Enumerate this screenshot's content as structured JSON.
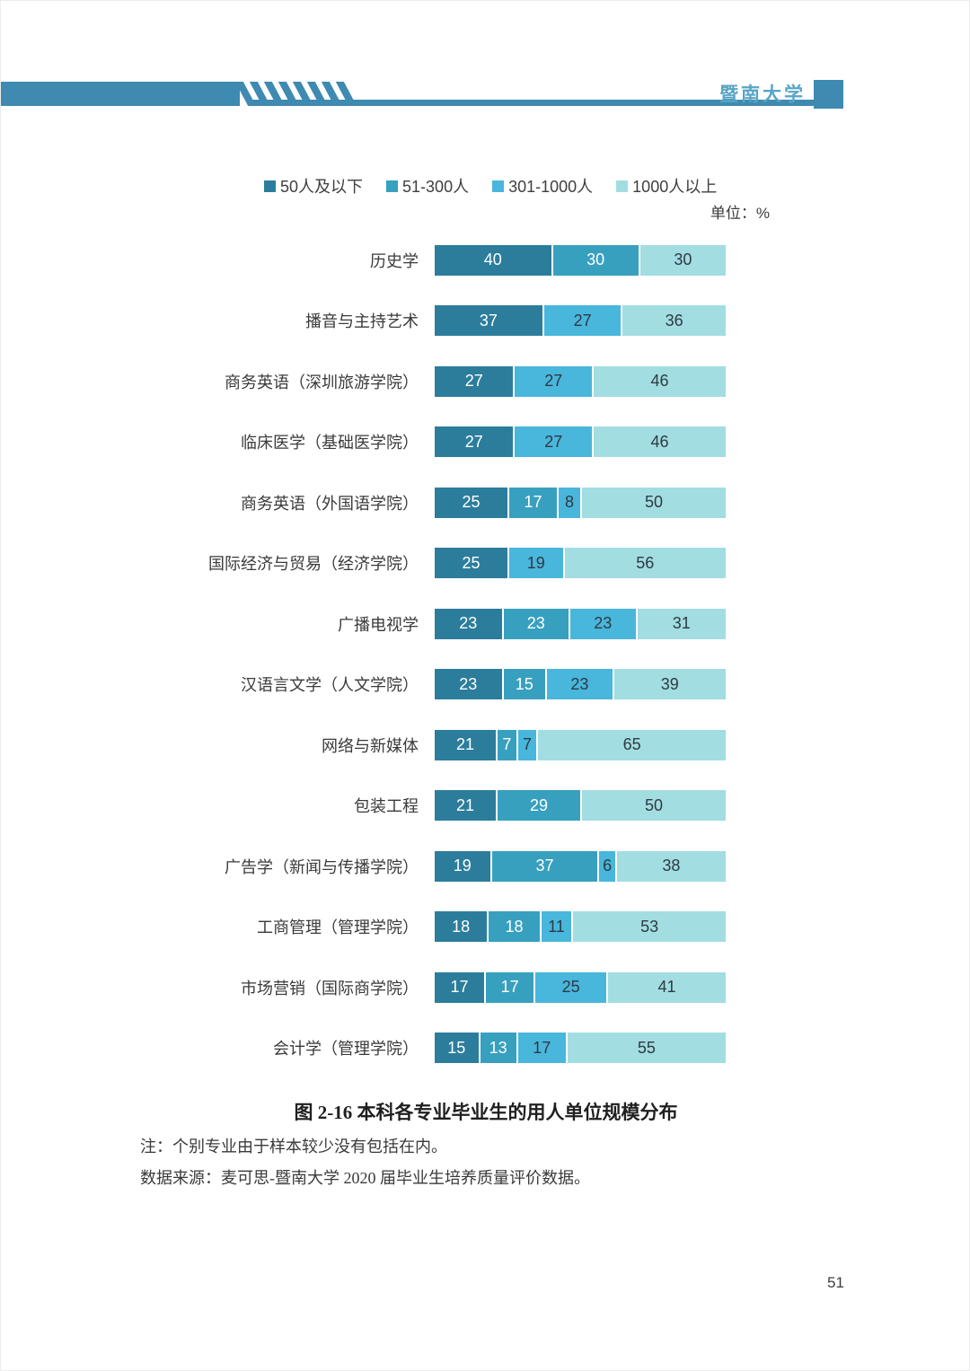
{
  "header": {
    "university": "暨南大学",
    "banner_color": "#3E8AB1",
    "title_color": "#58A4C6"
  },
  "chart_data": {
    "type": "bar",
    "orientation": "horizontal",
    "stacked": true,
    "unit_label": "单位：%",
    "xlim": [
      0,
      100
    ],
    "grid": false,
    "legend_position": "top",
    "legend": [
      {
        "label": "50人及以下",
        "color": "#2C7D9C"
      },
      {
        "label": "51-300人",
        "color": "#38A0BF"
      },
      {
        "label": "301-1000人",
        "color": "#49B6DC"
      },
      {
        "label": "1000人以上",
        "color": "#A2DDE2"
      }
    ],
    "categories": [
      "历史学",
      "播音与主持艺术",
      "商务英语（深圳旅游学院）",
      "临床医学（基础医学院）",
      "商务英语（外国语学院）",
      "国际经济与贸易（经济学院）",
      "广播电视学",
      "汉语言文学（人文学院）",
      "网络与新媒体",
      "包装工程",
      "广告学（新闻与传播学院）",
      "工商管理（管理学院）",
      "市场营销（国际商学院）",
      "会计学（管理学院）"
    ],
    "series": [
      {
        "name": "50人及以下",
        "color": "#2C7D9C",
        "label_color": "#FFFFFF",
        "values": [
          40,
          37,
          27,
          27,
          25,
          25,
          23,
          23,
          21,
          21,
          19,
          18,
          17,
          15
        ]
      },
      {
        "name": "51-300人",
        "color": "#38A0BF",
        "label_color": "#FFFFFF",
        "values": [
          30,
          0,
          0,
          0,
          17,
          0,
          23,
          15,
          7,
          29,
          37,
          18,
          17,
          13
        ]
      },
      {
        "name": "301-1000人",
        "color": "#49B6DC",
        "label_color": "#2D3A41",
        "values": [
          0,
          27,
          27,
          27,
          8,
          19,
          23,
          23,
          7,
          0,
          6,
          11,
          25,
          17
        ]
      },
      {
        "name": "1000人以上",
        "color": "#A2DDE2",
        "label_color": "#2D3A41",
        "values": [
          30,
          36,
          46,
          46,
          50,
          56,
          31,
          39,
          65,
          50,
          38,
          53,
          41,
          55
        ]
      }
    ]
  },
  "caption": {
    "text": "图 2-16 本科各专业毕业生的用人单位规模分布"
  },
  "notes": {
    "note": "注：个别专业由于样本较少没有包括在内。",
    "source": "数据来源：麦可思-暨南大学 2020 届毕业生培养质量评价数据。"
  },
  "footer": {
    "page_number": "51"
  }
}
